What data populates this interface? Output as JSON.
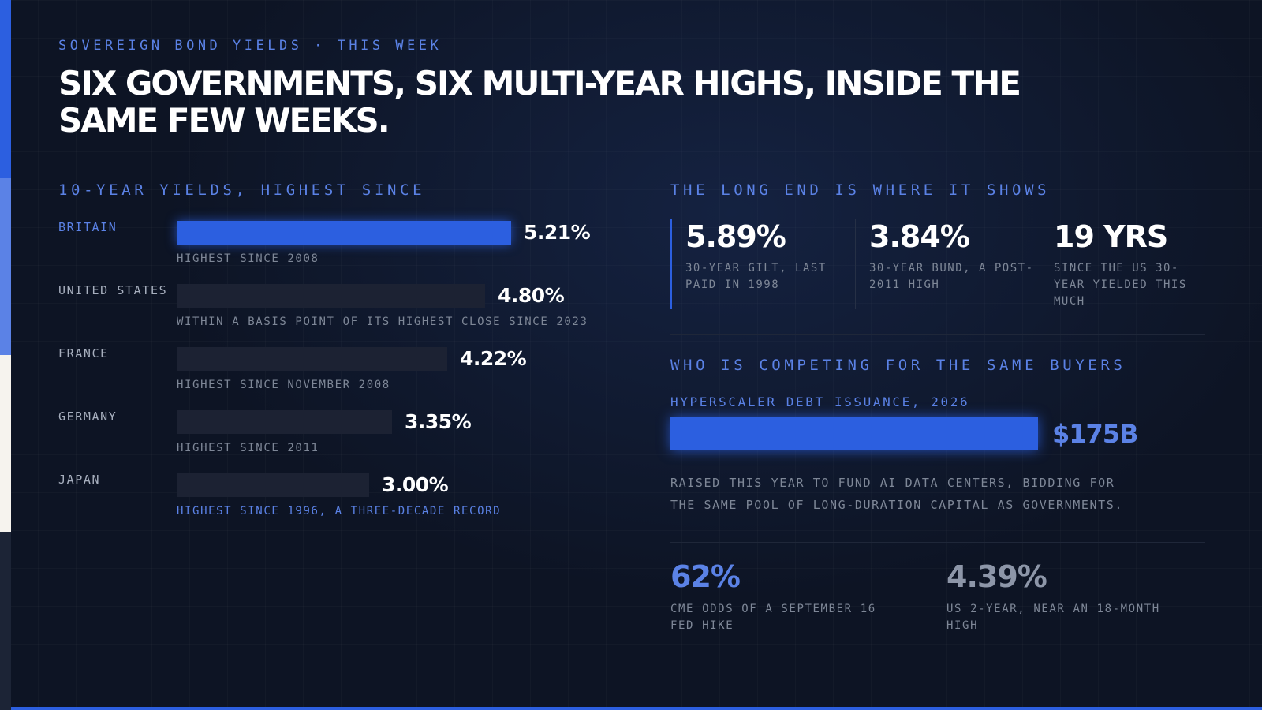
{
  "eyebrow": "SOVEREIGN BOND YIELDS · THIS WEEK",
  "headline": "SIX GOVERNMENTS, SIX MULTI-YEAR HIGHS, INSIDE THE SAME FEW WEEKS.",
  "colors": {
    "accent": "#2c5fe0",
    "accent_light": "#5b82e6",
    "bar_muted": "#1c2233",
    "background": "#0d1424",
    "text_muted": "#7e8797"
  },
  "left_section": {
    "title": "10-YEAR YIELDS, HIGHEST SINCE"
  },
  "chart_data": {
    "type": "bar",
    "orientation": "horizontal",
    "title": "10-YEAR YIELDS, HIGHEST SINCE",
    "unit": "%",
    "categories": [
      "BRITAIN",
      "UNITED STATES",
      "FRANCE",
      "GERMANY",
      "JAPAN"
    ],
    "values": [
      5.21,
      4.8,
      4.22,
      3.35,
      3.0
    ],
    "value_labels": [
      "5.21%",
      "4.80%",
      "4.22%",
      "3.35%",
      "3.00%"
    ],
    "notes": [
      "HIGHEST SINCE 2008",
      "WITHIN A BASIS POINT OF ITS HIGHEST CLOSE SINCE 2023",
      "HIGHEST SINCE NOVEMBER 2008",
      "HIGHEST SINCE 2011",
      "HIGHEST SINCE 1996, A THREE-DECADE RECORD"
    ],
    "highlighted": [
      "BRITAIN"
    ],
    "accent_notes": [
      "JAPAN"
    ],
    "xlim": [
      0,
      5.21
    ],
    "grid": false
  },
  "long_end": {
    "title": "THE LONG END IS WHERE IT SHOWS",
    "stats": [
      {
        "value": "5.89%",
        "label": "30-YEAR GILT, LAST PAID IN 1998"
      },
      {
        "value": "3.84%",
        "label": "30-YEAR BUND, A POST-2011 HIGH"
      },
      {
        "value": "19 YRS",
        "label": "SINCE THE US 30-YEAR YIELDED THIS MUCH"
      }
    ]
  },
  "competition": {
    "title": "WHO IS COMPETING FOR THE SAME BUYERS",
    "sub_label": "HYPERSCALER DEBT ISSUANCE, 2026",
    "value": "$175B",
    "note": "RAISED THIS YEAR TO FUND AI DATA CENTERS, BIDDING FOR THE SAME POOL OF LONG-DURATION CAPITAL AS GOVERNMENTS."
  },
  "bottom_stats": [
    {
      "value": "62%",
      "label": "CME ODDS OF A SEPTEMBER 16 FED HIKE",
      "color": "#5b82e6"
    },
    {
      "value": "4.39%",
      "label": "US 2-YEAR, NEAR AN 18-MONTH HIGH",
      "color": "#8d96a8"
    }
  ]
}
